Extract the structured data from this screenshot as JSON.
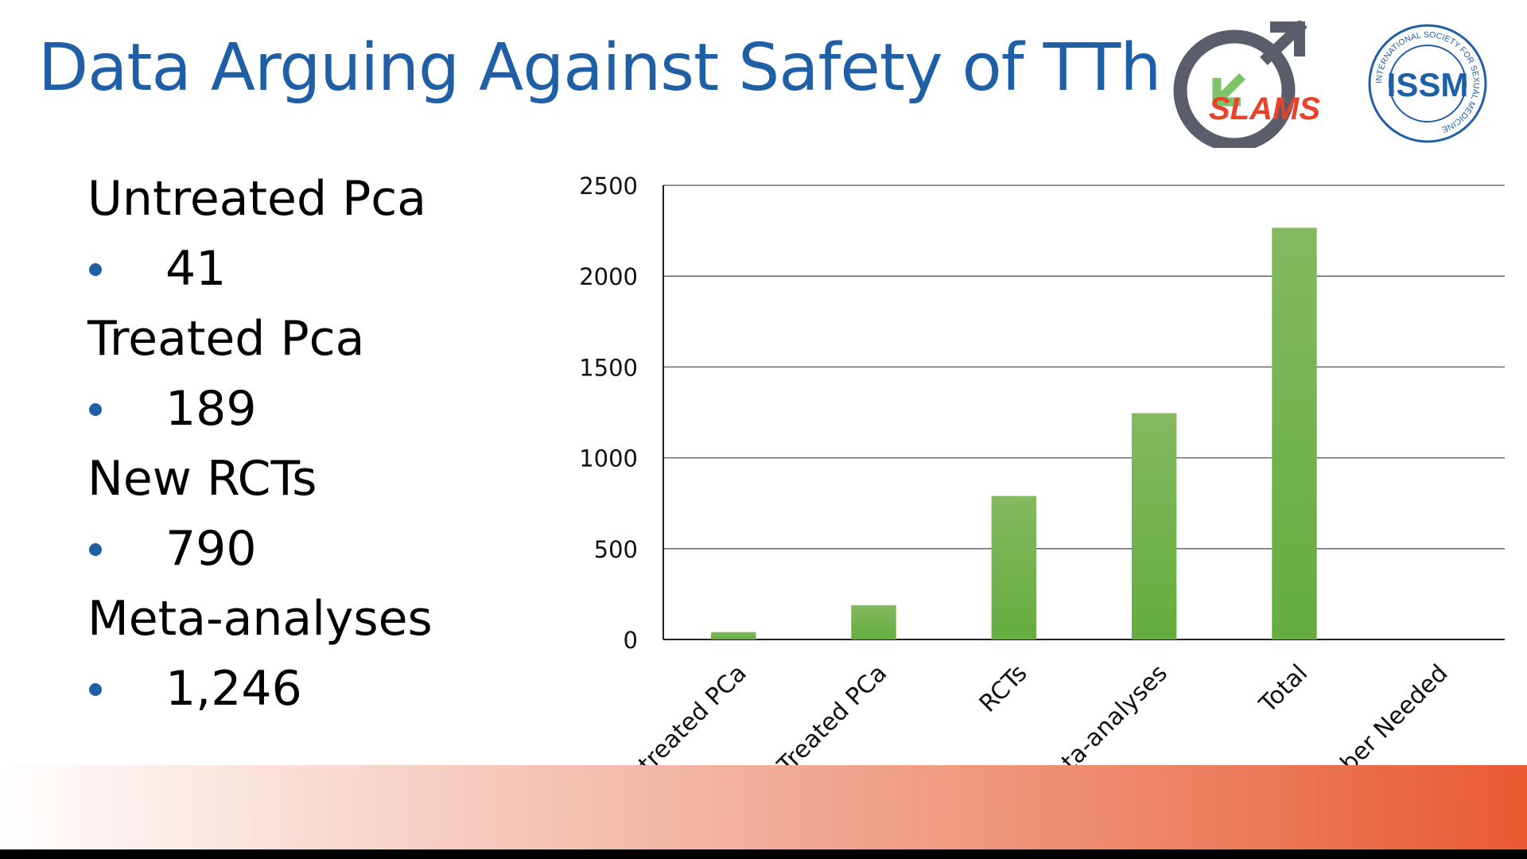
{
  "slide": {
    "title": "Data Arguing Against Safety of TTh",
    "logos": [
      {
        "name": "slams-logo",
        "text": "SLAMS"
      },
      {
        "name": "issm-logo",
        "text": "ISSM",
        "ring_text": "INTERNATIONAL SOCIETY FOR SEXUAL MEDICINE"
      }
    ]
  },
  "bullets": [
    {
      "heading": "Untreated Pca",
      "value": "41"
    },
    {
      "heading": "Treated Pca",
      "value": "189"
    },
    {
      "heading": "New RCTs",
      "value": "790"
    },
    {
      "heading": "Meta-analyses",
      "value": "1,246"
    }
  ],
  "chart_data": {
    "type": "bar",
    "categories": [
      "Untreated PCa",
      "Treated PCa",
      "RCTs",
      "Meta-analyses",
      "Total",
      "Number Needed"
    ],
    "values": [
      41,
      189,
      790,
      1246,
      2266,
      null
    ],
    "ylim": [
      0,
      2500
    ],
    "yticks": [
      0,
      500,
      1000,
      1500,
      2000,
      2500
    ],
    "grid": true,
    "bar_color": "#70ad47",
    "title": "",
    "xlabel": "",
    "ylabel": ""
  },
  "colors": {
    "title": "#1f5fa6",
    "bullet": "#1f5fa6",
    "slams_accent": "#e8432a",
    "slams_ring": "#5a5e6b",
    "slams_arrow": "#7cc36b",
    "issm": "#1f5fa6"
  }
}
